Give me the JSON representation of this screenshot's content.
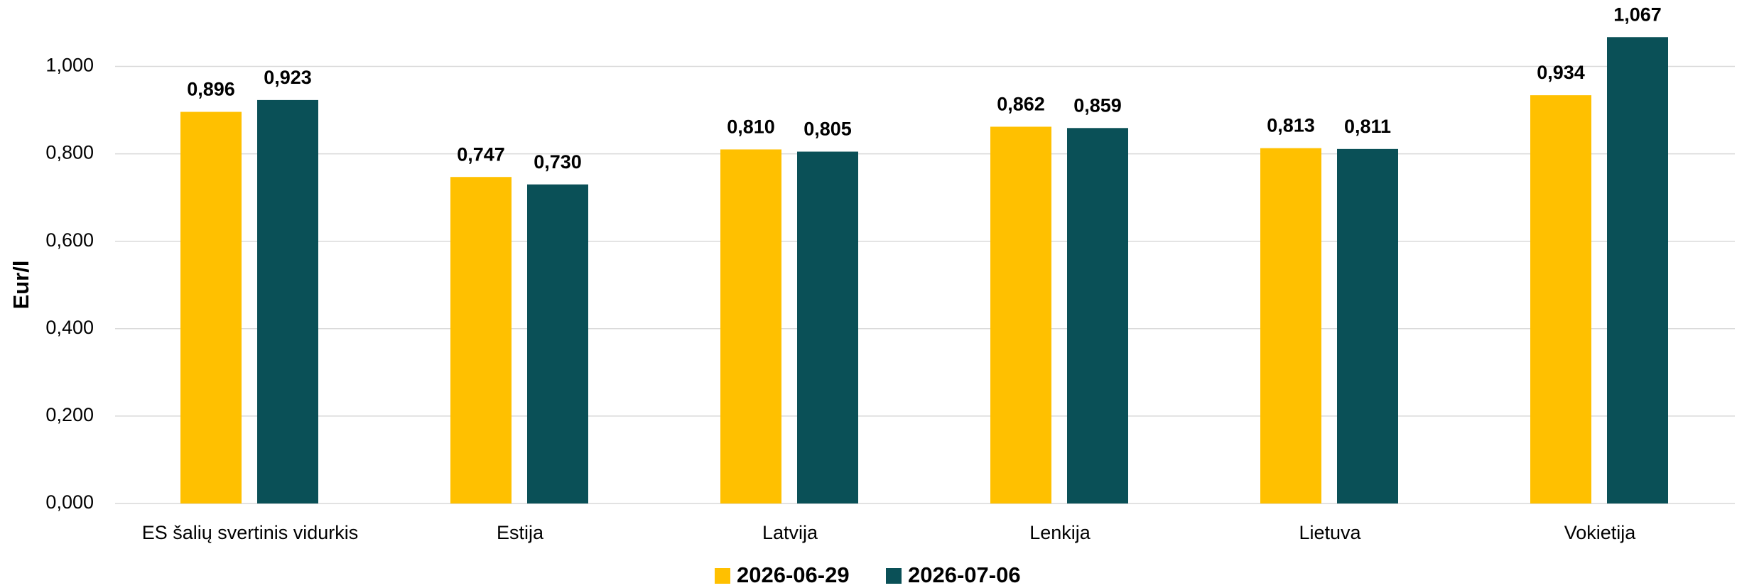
{
  "chart_data": {
    "type": "bar",
    "y_label": "Eur/l",
    "categories": [
      "ES šalių svertinis vidurkis",
      "Estija",
      "Latvija",
      "Lenkija",
      "Lietuva",
      "Vokietija"
    ],
    "series": [
      {
        "name": "2026-06-29",
        "color": "#ffc000",
        "values": [
          0.896,
          0.747,
          0.81,
          0.862,
          0.813,
          0.934
        ],
        "value_labels": [
          "0,896",
          "0,747",
          "0,810",
          "0,862",
          "0,813",
          "0,934"
        ]
      },
      {
        "name": "2026-07-06",
        "color": "#0a5057",
        "values": [
          0.923,
          0.73,
          0.805,
          0.859,
          0.811,
          1.067
        ],
        "value_labels": [
          "0,923",
          "0,730",
          "0,805",
          "0,859",
          "0,811",
          "1,067"
        ]
      }
    ],
    "ylim": [
      0,
      1.1
    ],
    "yticks": [
      {
        "value": 0,
        "label": "0,000"
      },
      {
        "value": 0.2,
        "label": "0,200"
      },
      {
        "value": 0.4,
        "label": "0,400"
      },
      {
        "value": 0.6,
        "label": "0,600"
      },
      {
        "value": 0.8,
        "label": "0,800"
      },
      {
        "value": 1.0,
        "label": "1,000"
      }
    ],
    "grid": true,
    "legend": "bottom"
  }
}
